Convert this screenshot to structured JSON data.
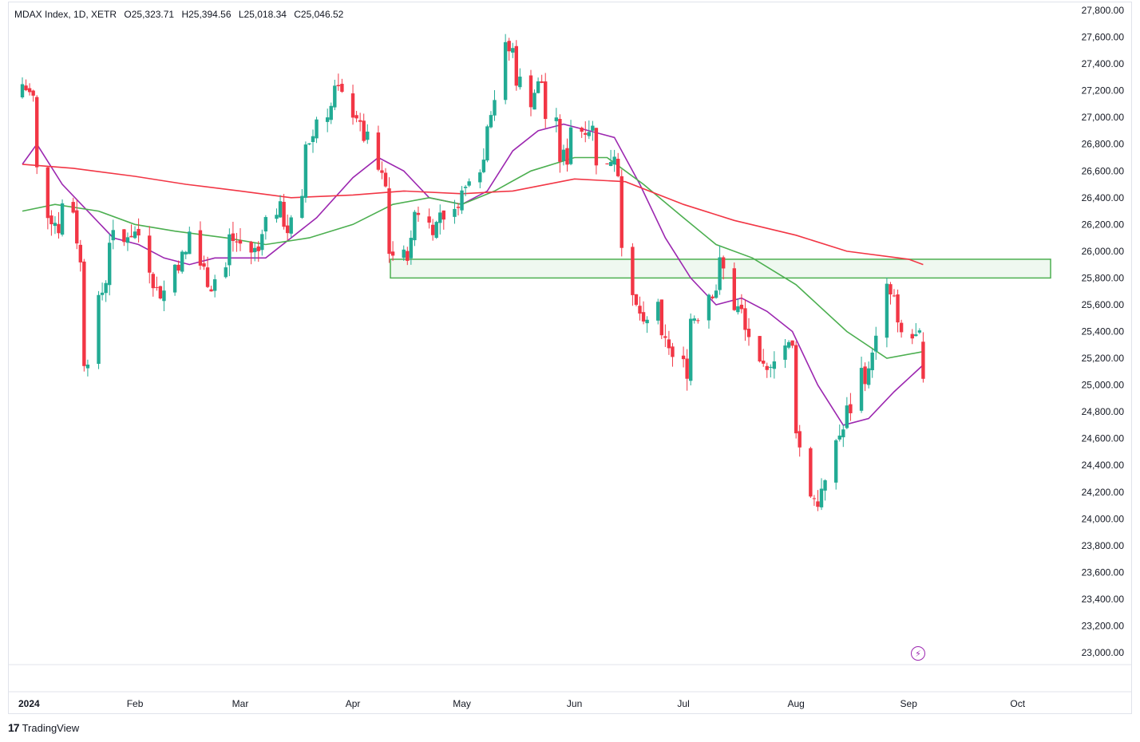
{
  "legend": {
    "symbol": "MDAX Index, 1D, XETR",
    "open": "O25,323.71",
    "high": "H25,394.56",
    "low": "L25,018.34",
    "close": "C25,046.52"
  },
  "footer": {
    "brand": "TradingView",
    "logo_glyph": "17"
  },
  "colors": {
    "up": "#22ab94",
    "down": "#f23645",
    "ma_fast": "#9c27b0",
    "ma_mid": "#4caf50",
    "ma_slow": "#f23645",
    "zone_stroke": "#4caf50",
    "zone_fill": "#e8f5e9"
  },
  "chart_data": {
    "type": "candlestick",
    "y_axis": {
      "ticks": [
        "27,800.00",
        "27,600.00",
        "27,400.00",
        "27,200.00",
        "27,000.00",
        "26,800.00",
        "26,600.00",
        "26,400.00",
        "26,200.00",
        "26,000.00",
        "25,800.00",
        "25,600.00",
        "25,400.00",
        "25,200.00",
        "25,000.00",
        "24,800.00",
        "24,600.00",
        "24,400.00",
        "24,200.00",
        "24,000.00",
        "23,800.00",
        "23,600.00",
        "23,400.00",
        "23,200.00",
        "23,000.00"
      ],
      "range": [
        23000,
        27800
      ]
    },
    "x_axis": {
      "labels": [
        {
          "text": "2024",
          "date": "2024-01-01",
          "bold": true
        },
        {
          "text": "Feb",
          "date": "2024-02-01"
        },
        {
          "text": "Mar",
          "date": "2024-03-01"
        },
        {
          "text": "Apr",
          "date": "2024-04-01"
        },
        {
          "text": "May",
          "date": "2024-05-01"
        },
        {
          "text": "Jun",
          "date": "2024-06-01"
        },
        {
          "text": "Jul",
          "date": "2024-07-01"
        },
        {
          "text": "Aug",
          "date": "2024-08-01"
        },
        {
          "text": "Sep",
          "date": "2024-09-01"
        },
        {
          "text": "Oct",
          "date": "2024-10-01"
        }
      ]
    },
    "zone": {
      "low": 25800,
      "high": 25940,
      "from": "2024-04-12",
      "to": "2024-10-15"
    },
    "waypoints": [
      [
        "2024-01-01",
        27150,
        27250
      ],
      [
        "2024-01-05",
        27100,
        26600
      ],
      [
        "2024-01-08",
        26500,
        26300
      ],
      [
        "2024-01-12",
        26150,
        26350
      ],
      [
        "2024-01-16",
        26300,
        26100
      ],
      [
        "2024-01-18",
        25700,
        25200
      ],
      [
        "2024-01-22",
        25300,
        25600
      ],
      [
        "2024-01-25",
        25900,
        26100
      ],
      [
        "2024-01-30",
        26050,
        26150
      ],
      [
        "2024-02-05",
        26100,
        25900
      ],
      [
        "2024-02-08",
        25600,
        25700
      ],
      [
        "2024-02-12",
        25700,
        25900
      ],
      [
        "2024-02-16",
        26000,
        26150
      ],
      [
        "2024-02-19",
        26100,
        25900
      ],
      [
        "2024-02-23",
        25700,
        25800
      ],
      [
        "2024-02-27",
        25900,
        26100
      ],
      [
        "2024-03-04",
        26000,
        26000
      ],
      [
        "2024-03-07",
        26000,
        26200
      ],
      [
        "2024-03-12",
        26350,
        26300
      ],
      [
        "2024-03-15",
        26100,
        26200
      ],
      [
        "2024-03-19",
        26400,
        26800
      ],
      [
        "2024-03-22",
        26900,
        27000
      ],
      [
        "2024-03-27",
        27100,
        27200
      ],
      [
        "2024-04-03",
        27000,
        26900
      ],
      [
        "2024-04-08",
        26700,
        26600
      ],
      [
        "2024-04-11",
        26400,
        26000
      ],
      [
        "2024-04-15",
        25900,
        25950
      ],
      [
        "2024-04-18",
        26100,
        26300
      ],
      [
        "2024-04-22",
        26350,
        26200
      ],
      [
        "2024-04-25",
        26200,
        26300
      ],
      [
        "2024-04-30",
        26250,
        26400
      ],
      [
        "2024-05-03",
        26500,
        26600
      ],
      [
        "2024-05-08",
        26700,
        27000
      ],
      [
        "2024-05-13",
        27400,
        27500
      ],
      [
        "2024-05-16",
        27500,
        27300
      ],
      [
        "2024-05-21",
        27100,
        27200
      ],
      [
        "2024-05-24",
        27300,
        27000
      ],
      [
        "2024-05-28",
        26900,
        26700
      ],
      [
        "2024-05-31",
        26700,
        26950
      ],
      [
        "2024-06-04",
        26900,
        26950
      ],
      [
        "2024-06-07",
        26900,
        26700
      ],
      [
        "2024-06-11",
        26600,
        26700
      ],
      [
        "2024-06-13",
        26800,
        26600
      ],
      [
        "2024-06-14",
        26500,
        26100
      ],
      [
        "2024-06-17",
        26000,
        25600
      ],
      [
        "2024-06-20",
        25500,
        25400
      ],
      [
        "2024-06-25",
        25700,
        25300
      ],
      [
        "2024-06-28",
        25300,
        25200
      ],
      [
        "2024-07-03",
        25100,
        25500
      ],
      [
        "2024-07-08",
        25600,
        25700
      ],
      [
        "2024-07-11",
        25750,
        25900
      ],
      [
        "2024-07-15",
        25700,
        25600
      ],
      [
        "2024-07-18",
        25500,
        25400
      ],
      [
        "2024-07-22",
        25300,
        25100
      ],
      [
        "2024-07-25",
        25050,
        25200
      ],
      [
        "2024-07-29",
        25350,
        25300
      ],
      [
        "2024-08-01",
        25250,
        24700
      ],
      [
        "2024-08-05",
        24000,
        24200
      ],
      [
        "2024-08-08",
        24100,
        24200
      ],
      [
        "2024-08-12",
        24250,
        24600
      ],
      [
        "2024-08-15",
        24700,
        24800
      ],
      [
        "2024-08-19",
        24900,
        25100
      ],
      [
        "2024-08-22",
        25050,
        25300
      ],
      [
        "2024-08-26",
        25400,
        25700
      ],
      [
        "2024-08-29",
        25600,
        25400
      ],
      [
        "2024-09-02",
        25300,
        25350
      ],
      [
        "2024-09-05",
        25323.71,
        25046.52
      ]
    ],
    "ma_series": [
      {
        "color_key": "ma_fast",
        "points": [
          [
            "2024-01-01",
            26650
          ],
          [
            "2024-01-05",
            26800
          ],
          [
            "2024-01-12",
            26500
          ],
          [
            "2024-01-19",
            26300
          ],
          [
            "2024-01-26",
            26100
          ],
          [
            "2024-02-02",
            26050
          ],
          [
            "2024-02-09",
            25950
          ],
          [
            "2024-02-16",
            25900
          ],
          [
            "2024-02-23",
            25950
          ],
          [
            "2024-03-01",
            25950
          ],
          [
            "2024-03-08",
            25950
          ],
          [
            "2024-03-15",
            26100
          ],
          [
            "2024-03-22",
            26250
          ],
          [
            "2024-04-01",
            26550
          ],
          [
            "2024-04-08",
            26700
          ],
          [
            "2024-04-15",
            26600
          ],
          [
            "2024-04-22",
            26400
          ],
          [
            "2024-05-01",
            26350
          ],
          [
            "2024-05-08",
            26450
          ],
          [
            "2024-05-15",
            26750
          ],
          [
            "2024-05-22",
            26900
          ],
          [
            "2024-05-29",
            26950
          ],
          [
            "2024-06-05",
            26900
          ],
          [
            "2024-06-12",
            26850
          ],
          [
            "2024-06-19",
            26500
          ],
          [
            "2024-06-26",
            26100
          ],
          [
            "2024-07-03",
            25800
          ],
          [
            "2024-07-10",
            25600
          ],
          [
            "2024-07-17",
            25650
          ],
          [
            "2024-07-24",
            25550
          ],
          [
            "2024-07-31",
            25400
          ],
          [
            "2024-08-07",
            25000
          ],
          [
            "2024-08-14",
            24700
          ],
          [
            "2024-08-21",
            24750
          ],
          [
            "2024-08-28",
            24950
          ],
          [
            "2024-09-05",
            25150
          ]
        ]
      },
      {
        "color_key": "ma_mid",
        "points": [
          [
            "2024-01-01",
            26300
          ],
          [
            "2024-01-10",
            26350
          ],
          [
            "2024-01-22",
            26300
          ],
          [
            "2024-02-01",
            26200
          ],
          [
            "2024-02-12",
            26150
          ],
          [
            "2024-02-26",
            26100
          ],
          [
            "2024-03-08",
            26050
          ],
          [
            "2024-03-20",
            26100
          ],
          [
            "2024-04-01",
            26200
          ],
          [
            "2024-04-12",
            26350
          ],
          [
            "2024-04-22",
            26400
          ],
          [
            "2024-05-01",
            26350
          ],
          [
            "2024-05-10",
            26450
          ],
          [
            "2024-05-20",
            26600
          ],
          [
            "2024-06-01",
            26700
          ],
          [
            "2024-06-10",
            26700
          ],
          [
            "2024-06-20",
            26500
          ],
          [
            "2024-07-01",
            26250
          ],
          [
            "2024-07-10",
            26050
          ],
          [
            "2024-07-20",
            25950
          ],
          [
            "2024-08-01",
            25750
          ],
          [
            "2024-08-15",
            25400
          ],
          [
            "2024-08-26",
            25200
          ],
          [
            "2024-09-05",
            25250
          ]
        ]
      },
      {
        "color_key": "ma_slow",
        "points": [
          [
            "2024-01-01",
            26650
          ],
          [
            "2024-01-15",
            26620
          ],
          [
            "2024-02-01",
            26560
          ],
          [
            "2024-02-15",
            26500
          ],
          [
            "2024-03-01",
            26450
          ],
          [
            "2024-03-15",
            26400
          ],
          [
            "2024-04-01",
            26420
          ],
          [
            "2024-04-15",
            26450
          ],
          [
            "2024-05-01",
            26430
          ],
          [
            "2024-05-15",
            26450
          ],
          [
            "2024-06-01",
            26540
          ],
          [
            "2024-06-15",
            26520
          ],
          [
            "2024-07-01",
            26350
          ],
          [
            "2024-07-15",
            26230
          ],
          [
            "2024-08-01",
            26120
          ],
          [
            "2024-08-15",
            26000
          ],
          [
            "2024-09-01",
            25940
          ],
          [
            "2024-09-05",
            25900
          ]
        ]
      }
    ]
  }
}
